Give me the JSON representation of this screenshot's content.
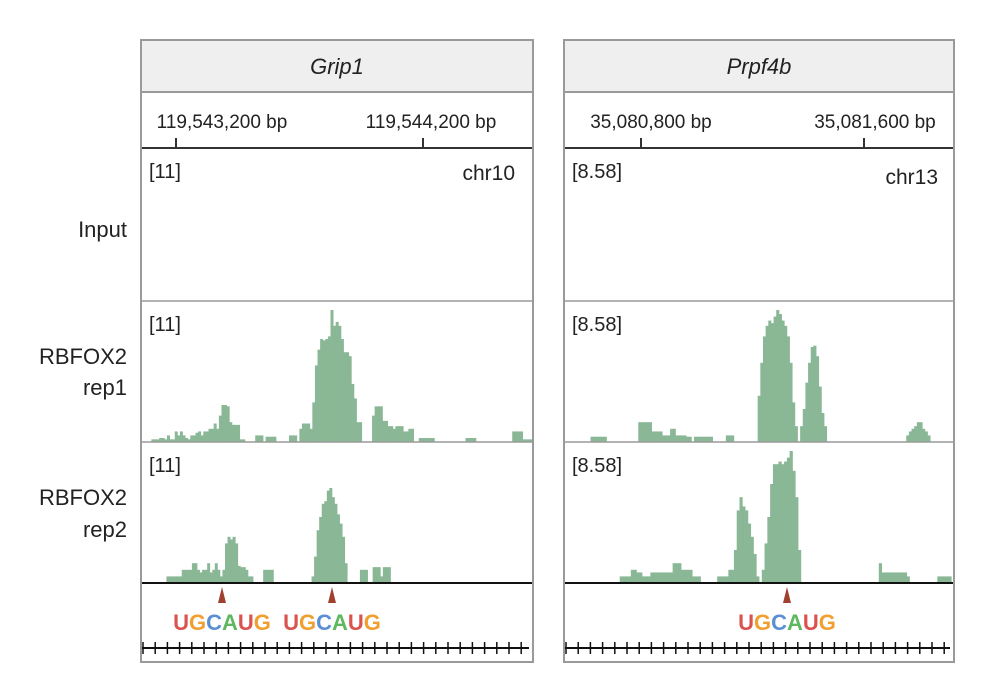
{
  "row_labels": [
    {
      "lines": [
        "Input"
      ]
    },
    {
      "lines": [
        "RBFOX2",
        "rep1"
      ]
    },
    {
      "lines": [
        "RBFOX2",
        "rep2"
      ]
    }
  ],
  "panels": [
    {
      "gene": "Grip1",
      "coords": [
        "119,543,200 bp",
        "119,544,200 bp"
      ],
      "chromosome": "chr10",
      "scale": "[11]",
      "motif": "UGCAUG",
      "motif_count": 2,
      "tracks": {
        "rep1": [
          0,
          0,
          0,
          0,
          0.02,
          0.02,
          0.02,
          0.03,
          0.03,
          0.02,
          0.05,
          0.02,
          0.02,
          0.08,
          0.05,
          0.08,
          0.05,
          0.03,
          0.02,
          0.05,
          0.05,
          0.07,
          0.08,
          0.05,
          0.08,
          0.08,
          0.1,
          0.1,
          0.14,
          0.1,
          0.2,
          0.28,
          0.28,
          0.27,
          0.15,
          0.13,
          0.13,
          0.13,
          0.02,
          0.02,
          0,
          0,
          0,
          0,
          0.05,
          0.05,
          0.05,
          0,
          0.04,
          0.04,
          0.04,
          0.04,
          0,
          0,
          0,
          0,
          0,
          0.05,
          0.05,
          0.05,
          0,
          0.1,
          0.14,
          0.14,
          0.14,
          0.1,
          0.3,
          0.58,
          0.7,
          0.78,
          0.77,
          0.78,
          0.8,
          1.0,
          0.88,
          0.91,
          0.88,
          0.78,
          0.68,
          0.68,
          0.65,
          0.44,
          0.33,
          0.15,
          0.15,
          0,
          0,
          0,
          0,
          0.2,
          0.27,
          0.27,
          0.27,
          0.16,
          0.16,
          0.12,
          0.12,
          0.1,
          0.12,
          0.12,
          0.12,
          0.08,
          0.08,
          0.1,
          0.1,
          0,
          0,
          0.03,
          0.03,
          0.03,
          0.03,
          0.03,
          0.03,
          0,
          0,
          0,
          0,
          0,
          0,
          0,
          0,
          0,
          0,
          0,
          0,
          0.03,
          0.03,
          0.03,
          0.03,
          0,
          0,
          0,
          0,
          0,
          0,
          0,
          0,
          0,
          0,
          0,
          0,
          0,
          0,
          0.08,
          0.08,
          0.08,
          0.08,
          0.02,
          0.02,
          0.02,
          0.02
        ],
        "rep2": [
          0,
          0,
          0,
          0,
          0,
          0,
          0,
          0,
          0,
          0,
          0.05,
          0.05,
          0.05,
          0.05,
          0.05,
          0.05,
          0.1,
          0.1,
          0.1,
          0.1,
          0.15,
          0.15,
          0.1,
          0.08,
          0.1,
          0.1,
          0.15,
          0.08,
          0.1,
          0.15,
          0.1,
          0.05,
          0.1,
          0.3,
          0.35,
          0.33,
          0.35,
          0.3,
          0.13,
          0.12,
          0.12,
          0.1,
          0.05,
          0.05,
          0,
          0,
          0,
          0,
          0.1,
          0.1,
          0.1,
          0.1,
          0,
          0,
          0,
          0,
          0,
          0,
          0,
          0,
          0,
          0,
          0,
          0,
          0,
          0,
          0,
          0.05,
          0.2,
          0.4,
          0.5,
          0.6,
          0.62,
          0.7,
          0.72,
          0.65,
          0.6,
          0.52,
          0.45,
          0.35,
          0.15,
          0,
          0,
          0,
          0,
          0,
          0.1,
          0.1,
          0.1,
          0,
          0,
          0.12,
          0.12,
          0.12,
          0.05,
          0.12,
          0.12,
          0.12,
          0,
          0,
          0,
          0,
          0,
          0,
          0,
          0,
          0,
          0,
          0,
          0,
          0,
          0,
          0,
          0,
          0,
          0,
          0,
          0,
          0,
          0,
          0,
          0,
          0,
          0,
          0,
          0,
          0,
          0,
          0,
          0,
          0,
          0,
          0,
          0,
          0,
          0,
          0,
          0,
          0,
          0,
          0,
          0,
          0,
          0,
          0,
          0,
          0,
          0,
          0,
          0,
          0,
          0,
          0,
          0
        ]
      }
    },
    {
      "gene": "Prpf4b",
      "coords": [
        "35,080,800 bp",
        "35,081,600 bp"
      ],
      "chromosome": "chr13",
      "scale": "[8.58]",
      "motif": "UGCAUG",
      "motif_count": 1,
      "tracks": {
        "rep1": [
          0,
          0,
          0,
          0,
          0,
          0,
          0,
          0,
          0,
          0,
          0.04,
          0.04,
          0.04,
          0.04,
          0.04,
          0.04,
          0,
          0,
          0,
          0,
          0,
          0,
          0,
          0,
          0,
          0,
          0,
          0,
          0.15,
          0.15,
          0.15,
          0.15,
          0.15,
          0.08,
          0.08,
          0.08,
          0.08,
          0.05,
          0.05,
          0.05,
          0.1,
          0.1,
          0.05,
          0.05,
          0.05,
          0.05,
          0.04,
          0.04,
          0,
          0.04,
          0.04,
          0.04,
          0.04,
          0.04,
          0.04,
          0.04,
          0,
          0,
          0,
          0,
          0,
          0.05,
          0.05,
          0.05,
          0,
          0,
          0,
          0,
          0,
          0,
          0,
          0,
          0,
          0.35,
          0.6,
          0.8,
          0.88,
          0.92,
          0.9,
          0.95,
          1.0,
          0.97,
          0.92,
          0.88,
          0.8,
          0.6,
          0.3,
          0.12,
          0,
          0.12,
          0.25,
          0.45,
          0.6,
          0.72,
          0.73,
          0.65,
          0.42,
          0.22,
          0.12,
          0,
          0,
          0,
          0,
          0,
          0,
          0,
          0,
          0,
          0,
          0,
          0,
          0,
          0,
          0,
          0,
          0,
          0,
          0,
          0,
          0,
          0,
          0,
          0,
          0,
          0,
          0,
          0,
          0,
          0,
          0.05,
          0.08,
          0.1,
          0.12,
          0.15,
          0.15,
          0.1,
          0.08,
          0.05,
          0,
          0,
          0,
          0,
          0,
          0,
          0,
          0,
          0
        ],
        "rep2": [
          0,
          0,
          0,
          0,
          0,
          0,
          0,
          0,
          0,
          0,
          0,
          0,
          0,
          0,
          0,
          0,
          0,
          0,
          0,
          0,
          0.05,
          0.05,
          0.05,
          0.05,
          0.1,
          0.1,
          0.08,
          0.08,
          0.05,
          0.05,
          0.05,
          0.08,
          0.08,
          0.08,
          0.08,
          0.08,
          0.08,
          0.08,
          0.08,
          0.15,
          0.15,
          0.15,
          0.1,
          0.1,
          0.1,
          0.1,
          0.05,
          0.05,
          0.05,
          0,
          0,
          0,
          0,
          0,
          0,
          0.05,
          0.05,
          0.05,
          0.05,
          0.1,
          0.1,
          0.25,
          0.55,
          0.65,
          0.58,
          0.55,
          0.45,
          0.35,
          0.22,
          0.05,
          0,
          0.1,
          0.3,
          0.5,
          0.75,
          0.9,
          0.9,
          0.92,
          0.9,
          0.92,
          0.95,
          1.0,
          0.85,
          0.65,
          0.25,
          0,
          0,
          0,
          0,
          0,
          0,
          0,
          0,
          0,
          0,
          0,
          0,
          0,
          0,
          0,
          0,
          0,
          0,
          0,
          0,
          0,
          0,
          0,
          0,
          0,
          0,
          0,
          0,
          0.15,
          0.08,
          0.08,
          0.08,
          0.08,
          0.08,
          0.08,
          0.08,
          0.08,
          0.08,
          0.05,
          0,
          0,
          0,
          0,
          0,
          0,
          0,
          0,
          0,
          0,
          0.05,
          0.05,
          0.05,
          0.05,
          0.05,
          0
        ]
      }
    }
  ],
  "colors": {
    "track_fill": "#8ab795",
    "motif_U": "#d9534f",
    "motif_G": "#f0a030",
    "motif_C": "#5b8fd4",
    "motif_A": "#5fb85f",
    "marker": "#a04030"
  }
}
